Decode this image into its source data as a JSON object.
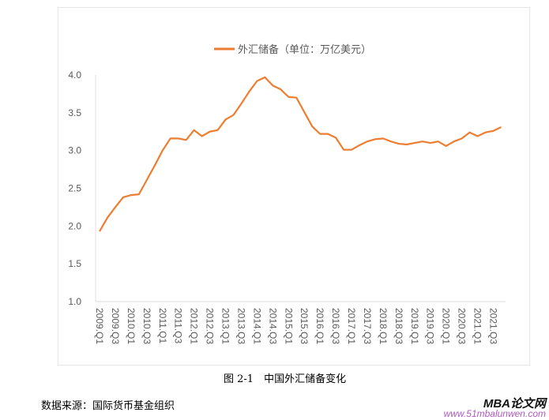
{
  "chart_data": {
    "type": "line",
    "title": "",
    "xlabel": "",
    "ylabel": "",
    "ylim": [
      1.0,
      4.0
    ],
    "yticks": [
      "1.0",
      "1.5",
      "2.0",
      "2.5",
      "3.0",
      "3.5",
      "4.0"
    ],
    "grid": false,
    "legend_position": "top",
    "xtick_labels": [
      "2009.Q1",
      "2009.Q3",
      "2010.Q1",
      "2010.Q3",
      "2011.Q1",
      "2011.Q3",
      "2012.Q1",
      "2012.Q3",
      "2013.Q1",
      "2013.Q3",
      "2014.Q1",
      "2014.Q3",
      "2015.Q1",
      "2015.Q3",
      "2016.Q1",
      "2016.Q3",
      "2017.Q1",
      "2017.Q3",
      "2018.Q1",
      "2018.Q3",
      "2019.Q1",
      "2019.Q3",
      "2020.Q1",
      "2020.Q3",
      "2021.Q1",
      "2021.Q3"
    ],
    "series": [
      {
        "name": "外汇储备（单位：万亿美元）",
        "color": "#ED7D31",
        "values": [
          1.93,
          2.11,
          2.25,
          2.38,
          2.41,
          2.42,
          2.61,
          2.8,
          3.0,
          3.16,
          3.16,
          3.14,
          3.27,
          3.19,
          3.25,
          3.27,
          3.41,
          3.47,
          3.62,
          3.78,
          3.92,
          3.97,
          3.86,
          3.81,
          3.71,
          3.7,
          3.51,
          3.32,
          3.22,
          3.22,
          3.17,
          3.01,
          3.01,
          3.07,
          3.12,
          3.15,
          3.16,
          3.12,
          3.09,
          3.08,
          3.1,
          3.12,
          3.1,
          3.12,
          3.06,
          3.12,
          3.16,
          3.24,
          3.19,
          3.24,
          3.26,
          3.31
        ]
      }
    ]
  },
  "caption": "图 2-1　中国外汇储备变化",
  "source": "数据来源：国际货币基金组织",
  "watermark": {
    "brand": "MBA论文网",
    "url": "www.51mbalunwen.com"
  }
}
